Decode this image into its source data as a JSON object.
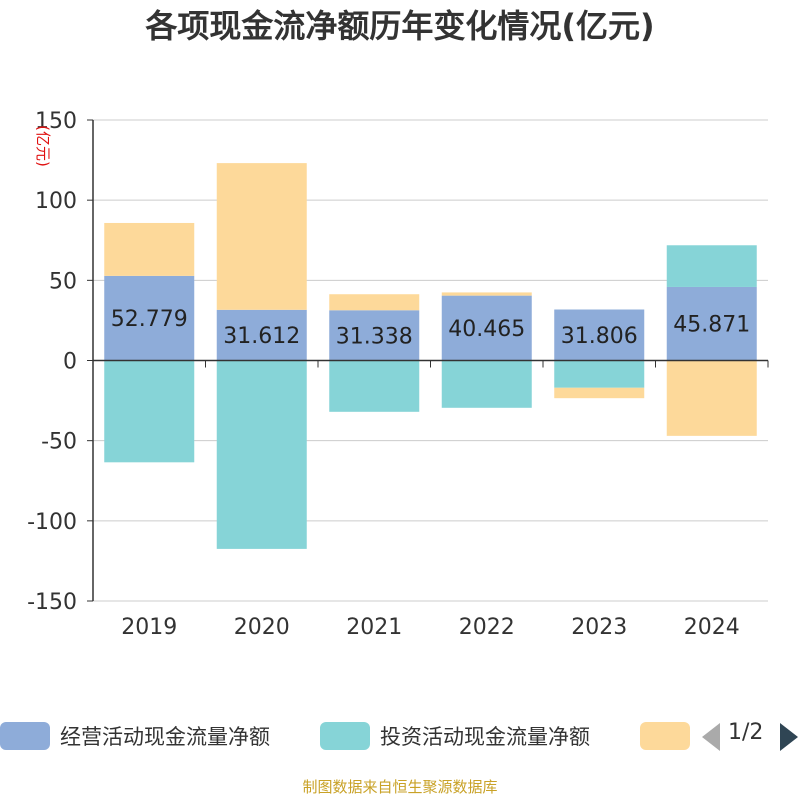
{
  "chart_data": {
    "type": "bar",
    "stacked": true,
    "title": "各项现金流净额历年变化情况(亿元)",
    "ylabel": "(亿元)",
    "ylim": [
      -150,
      150
    ],
    "yticks": [
      150,
      100,
      50,
      0,
      -50,
      -100,
      -150
    ],
    "categories": [
      "2019",
      "2020",
      "2021",
      "2022",
      "2023",
      "2024"
    ],
    "series": [
      {
        "name": "经营活动现金流量净额",
        "color": "#8eacd9",
        "values": [
          52.779,
          31.612,
          31.338,
          40.465,
          31.806,
          45.871
        ],
        "labels": [
          "52.779",
          "31.612",
          "31.338",
          "40.465",
          "31.806",
          "45.871"
        ]
      },
      {
        "name": "投资活动现金流量净额",
        "color": "#86d4d7",
        "values": [
          -63.5,
          -117.5,
          -32,
          -29.5,
          -17,
          26
        ]
      },
      {
        "name": "",
        "color": "#fdd99a",
        "values": [
          33,
          91.5,
          10,
          2,
          -6.5,
          -47
        ]
      }
    ],
    "grid": true,
    "legend_position": "bottom"
  },
  "legend": {
    "page": "1/2"
  },
  "source": "制图数据来自恒生聚源数据库"
}
